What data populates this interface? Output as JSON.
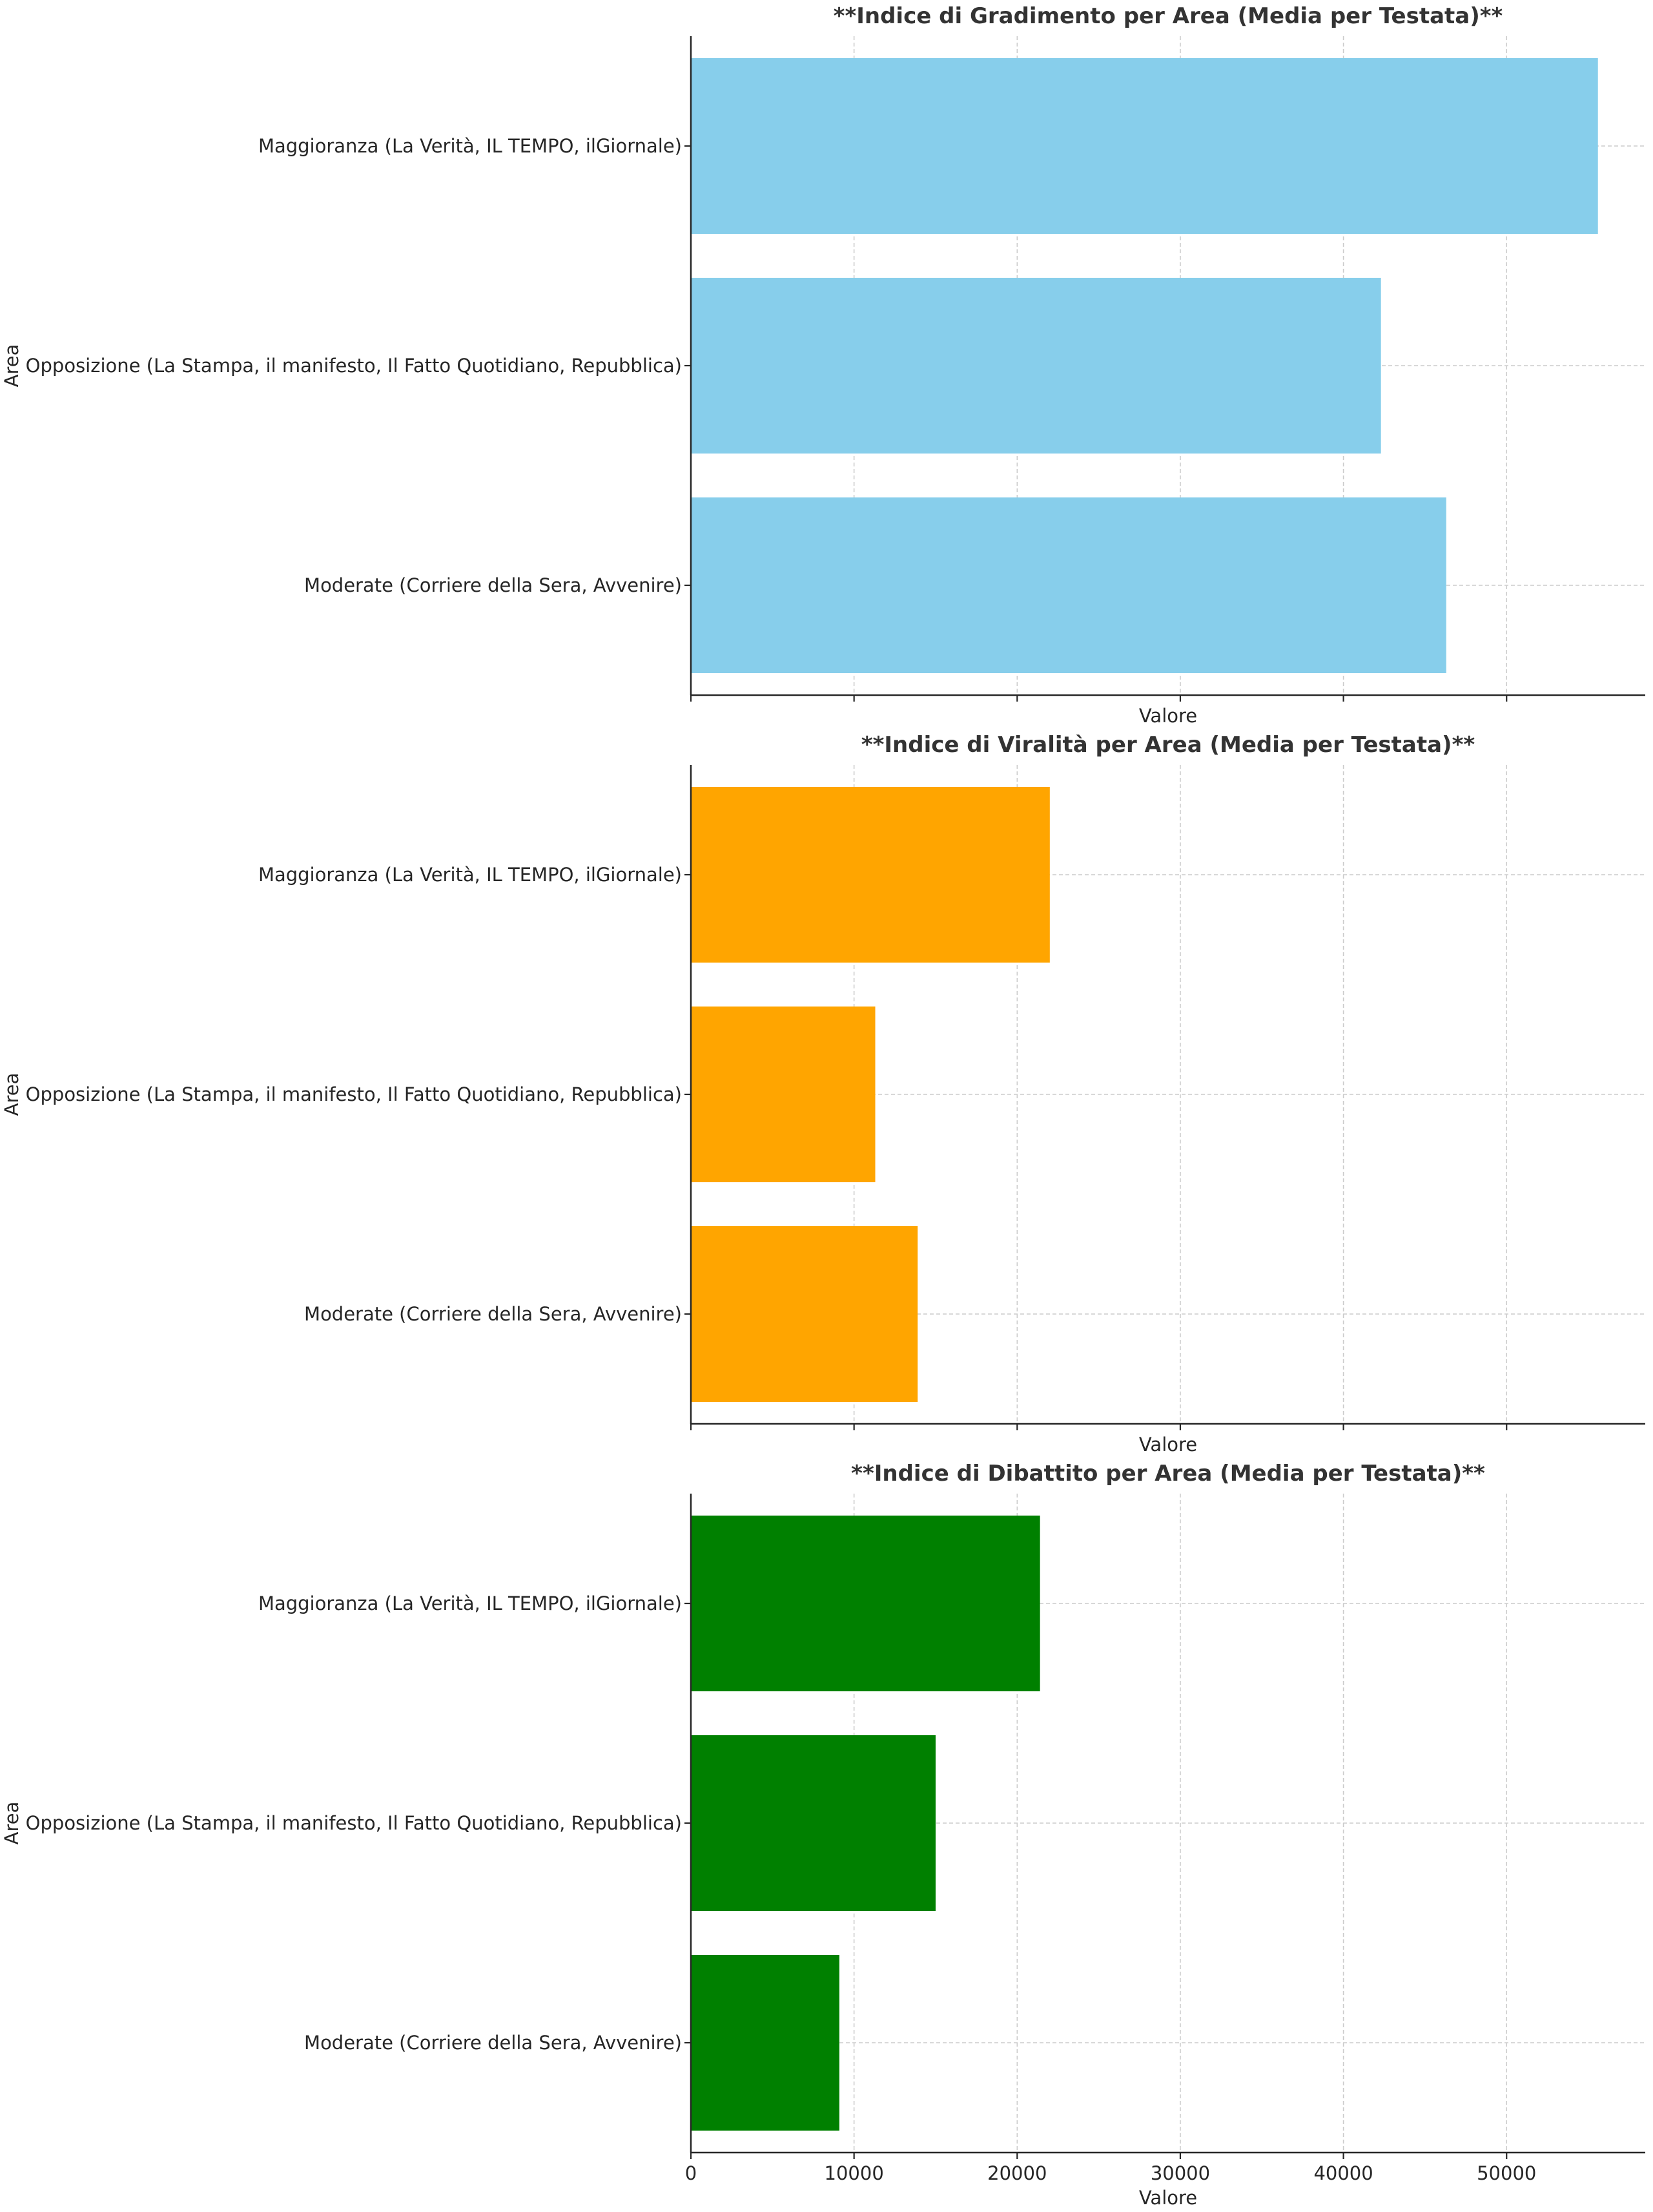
{
  "chart_data": [
    {
      "type": "bar",
      "orientation": "horizontal",
      "title": "**Indice di Gradimento per Area (Media per Testata)**",
      "xlabel": "Valore",
      "ylabel": "Area",
      "categories": [
        "Maggioranza (La Verità, IL TEMPO, ilGiornale)",
        "Opposizione (La Stampa, il manifesto, Il Fatto Quotidiano, Repubblica)",
        "Moderate (Corriere della Sera, Avvenire)"
      ],
      "values": [
        55600,
        42300,
        46300
      ],
      "color": "#87CEEB",
      "xlim": [
        0,
        58500
      ],
      "xticks": [
        0,
        10000,
        20000,
        30000,
        40000,
        50000
      ],
      "show_xtick_labels": false,
      "grid": true
    },
    {
      "type": "bar",
      "orientation": "horizontal",
      "title": "**Indice di Viralità per Area (Media per Testata)**",
      "xlabel": "Valore",
      "ylabel": "Area",
      "categories": [
        "Maggioranza (La Verità, IL TEMPO, ilGiornale)",
        "Opposizione (La Stampa, il manifesto, Il Fatto Quotidiano, Repubblica)",
        "Moderate (Corriere della Sera, Avvenire)"
      ],
      "values": [
        22000,
        11300,
        13900
      ],
      "color": "#FFA500",
      "xlim": [
        0,
        58500
      ],
      "xticks": [
        0,
        10000,
        20000,
        30000,
        40000,
        50000
      ],
      "show_xtick_labels": false,
      "grid": true
    },
    {
      "type": "bar",
      "orientation": "horizontal",
      "title": "**Indice di Dibattito per Area (Media per Testata)**",
      "xlabel": "Valore",
      "ylabel": "Area",
      "categories": [
        "Maggioranza (La Verità, IL TEMPO, ilGiornale)",
        "Opposizione (La Stampa, il manifesto, Il Fatto Quotidiano, Repubblica)",
        "Moderate (Corriere della Sera, Avvenire)"
      ],
      "values": [
        21400,
        15000,
        9100
      ],
      "color": "#008000",
      "xlim": [
        0,
        58500
      ],
      "xticks": [
        0,
        10000,
        20000,
        30000,
        40000,
        50000
      ],
      "show_xtick_labels": true,
      "grid": true
    }
  ]
}
